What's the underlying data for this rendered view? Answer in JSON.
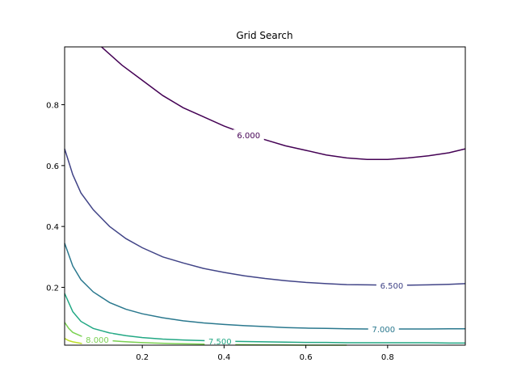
{
  "chart_data": {
    "type": "contour",
    "title": "Grid Search",
    "xlabel": "",
    "ylabel": "",
    "xlim": [
      0.01,
      0.99
    ],
    "ylim": [
      0.01,
      0.99
    ],
    "x_ticks": [
      0.2,
      0.4,
      0.6,
      0.8
    ],
    "y_ticks": [
      0.2,
      0.4,
      0.6,
      0.8
    ],
    "x_tick_labels": [
      "0.2",
      "0.4",
      "0.6",
      "0.8"
    ],
    "y_tick_labels": [
      "0.2",
      "0.4",
      "0.6",
      "0.8"
    ],
    "grid": false,
    "colormap": "viridis",
    "levels": [
      {
        "value": 6.0,
        "label": "6.000",
        "color": "#440154",
        "points": [
          [
            0.1,
            0.99
          ],
          [
            0.15,
            0.93
          ],
          [
            0.2,
            0.88
          ],
          [
            0.25,
            0.83
          ],
          [
            0.3,
            0.79
          ],
          [
            0.35,
            0.76
          ],
          [
            0.4,
            0.73
          ],
          [
            0.45,
            0.705
          ],
          [
            0.5,
            0.685
          ],
          [
            0.55,
            0.665
          ],
          [
            0.6,
            0.65
          ],
          [
            0.65,
            0.635
          ],
          [
            0.7,
            0.625
          ],
          [
            0.75,
            0.62
          ],
          [
            0.8,
            0.62
          ],
          [
            0.85,
            0.625
          ],
          [
            0.9,
            0.632
          ],
          [
            0.95,
            0.642
          ],
          [
            0.99,
            0.655
          ]
        ],
        "label_at": [
          0.46,
          0.7
        ]
      },
      {
        "value": 6.5,
        "label": "6.500",
        "color": "#414487",
        "points": [
          [
            0.01,
            0.655
          ],
          [
            0.03,
            0.57
          ],
          [
            0.05,
            0.51
          ],
          [
            0.08,
            0.455
          ],
          [
            0.12,
            0.4
          ],
          [
            0.16,
            0.36
          ],
          [
            0.2,
            0.33
          ],
          [
            0.25,
            0.3
          ],
          [
            0.3,
            0.28
          ],
          [
            0.35,
            0.262
          ],
          [
            0.4,
            0.249
          ],
          [
            0.45,
            0.238
          ],
          [
            0.5,
            0.229
          ],
          [
            0.55,
            0.222
          ],
          [
            0.6,
            0.216
          ],
          [
            0.65,
            0.212
          ],
          [
            0.7,
            0.209
          ],
          [
            0.75,
            0.208
          ],
          [
            0.8,
            0.207
          ],
          [
            0.85,
            0.207
          ],
          [
            0.9,
            0.208
          ],
          [
            0.95,
            0.21
          ],
          [
            0.99,
            0.212
          ]
        ],
        "label_at": [
          0.81,
          0.207
        ]
      },
      {
        "value": 7.0,
        "label": "7.000",
        "color": "#2a788e",
        "points": [
          [
            0.01,
            0.345
          ],
          [
            0.03,
            0.27
          ],
          [
            0.05,
            0.225
          ],
          [
            0.08,
            0.185
          ],
          [
            0.12,
            0.15
          ],
          [
            0.16,
            0.128
          ],
          [
            0.2,
            0.113
          ],
          [
            0.25,
            0.1
          ],
          [
            0.3,
            0.09
          ],
          [
            0.35,
            0.083
          ],
          [
            0.4,
            0.078
          ],
          [
            0.45,
            0.074
          ],
          [
            0.5,
            0.071
          ],
          [
            0.55,
            0.068
          ],
          [
            0.6,
            0.066
          ],
          [
            0.65,
            0.065
          ],
          [
            0.7,
            0.064
          ],
          [
            0.75,
            0.063
          ],
          [
            0.8,
            0.063
          ],
          [
            0.85,
            0.063
          ],
          [
            0.9,
            0.063
          ],
          [
            0.95,
            0.064
          ],
          [
            0.99,
            0.064
          ]
        ],
        "label_at": [
          0.79,
          0.063
        ]
      },
      {
        "value": 7.5,
        "label": "7.500",
        "color": "#22a884",
        "points": [
          [
            0.01,
            0.18
          ],
          [
            0.03,
            0.12
          ],
          [
            0.05,
            0.088
          ],
          [
            0.08,
            0.065
          ],
          [
            0.12,
            0.05
          ],
          [
            0.16,
            0.041
          ],
          [
            0.2,
            0.035
          ],
          [
            0.25,
            0.03
          ],
          [
            0.3,
            0.027
          ],
          [
            0.35,
            0.025
          ],
          [
            0.4,
            0.023
          ],
          [
            0.45,
            0.022
          ],
          [
            0.5,
            0.021
          ],
          [
            0.55,
            0.02
          ],
          [
            0.6,
            0.019
          ],
          [
            0.65,
            0.019
          ],
          [
            0.7,
            0.018
          ],
          [
            0.75,
            0.018
          ],
          [
            0.8,
            0.018
          ],
          [
            0.85,
            0.018
          ],
          [
            0.9,
            0.018
          ],
          [
            0.95,
            0.017
          ],
          [
            0.99,
            0.017
          ]
        ],
        "label_at": [
          0.39,
          0.023
        ]
      },
      {
        "value": 8.0,
        "label": "8.000",
        "color": "#7ad151",
        "points": [
          [
            0.01,
            0.085
          ],
          [
            0.02,
            0.065
          ],
          [
            0.03,
            0.052
          ],
          [
            0.05,
            0.04
          ],
          [
            0.08,
            0.031
          ],
          [
            0.11,
            0.026
          ],
          [
            0.15,
            0.022
          ],
          [
            0.19,
            0.019
          ],
          [
            0.23,
            0.017
          ],
          [
            0.28,
            0.015
          ],
          [
            0.33,
            0.014
          ],
          [
            0.4,
            0.012
          ],
          [
            0.5,
            0.011
          ],
          [
            0.6,
            0.01
          ],
          [
            0.7,
            0.01
          ]
        ],
        "label_at": [
          0.09,
          0.029
        ]
      },
      {
        "value": 8.5,
        "label": "",
        "color": "#bddf26",
        "points": [
          [
            0.01,
            0.032
          ],
          [
            0.02,
            0.025
          ],
          [
            0.03,
            0.021
          ],
          [
            0.05,
            0.016
          ],
          [
            0.07,
            0.013
          ],
          [
            0.09,
            0.011
          ]
        ],
        "label_at": null
      }
    ]
  }
}
